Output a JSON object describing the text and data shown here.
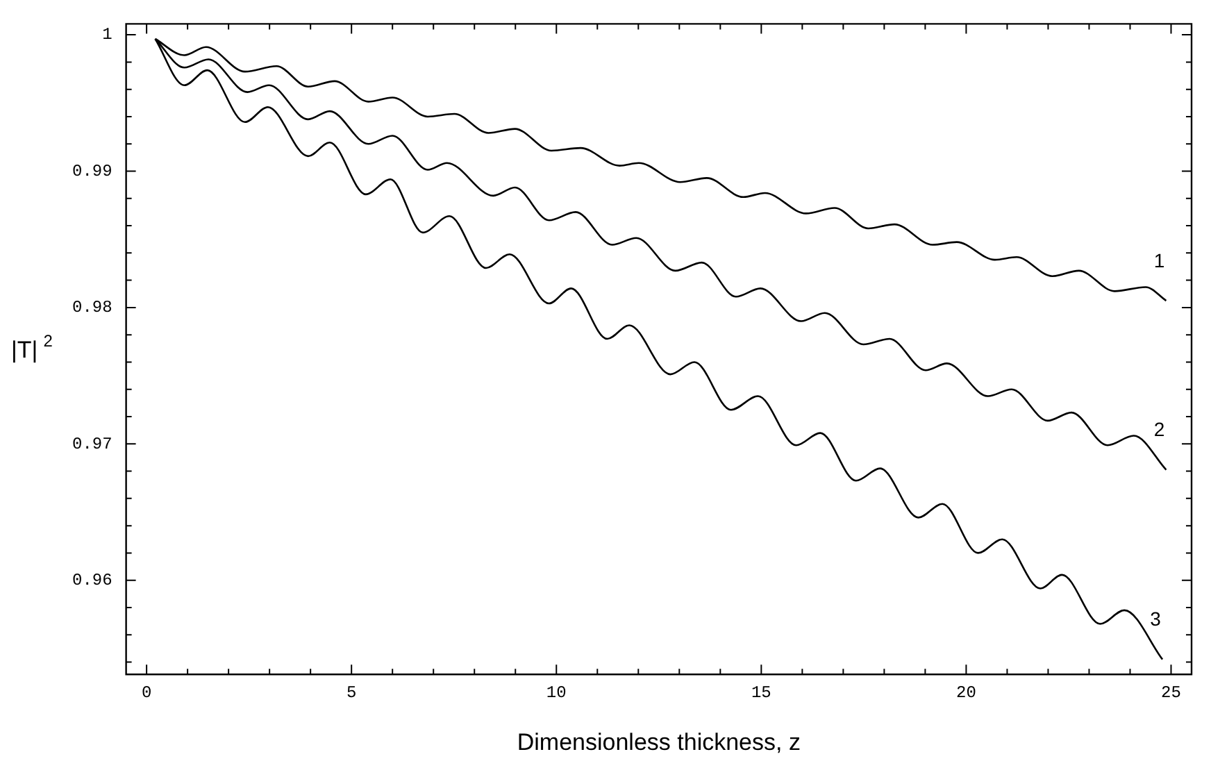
{
  "chart_data": {
    "type": "line",
    "xlabel": "Dimensionless thickness, z",
    "ylabel": "|T|$^{2}$",
    "xlim": [
      -0.5,
      25.5
    ],
    "ylim": [
      0.9531,
      1.0008
    ],
    "xticks": [
      0,
      {
        "value": 1,
        "label": null
      },
      {
        "value": 2,
        "label": null
      },
      {
        "value": 3,
        "label": null
      },
      {
        "value": 4,
        "label": null
      },
      5,
      {
        "value": 6,
        "label": null
      },
      {
        "value": 7,
        "label": null
      },
      {
        "value": 8,
        "label": null
      },
      {
        "value": 9,
        "label": null
      },
      10,
      {
        "value": 11,
        "label": null
      },
      {
        "value": 12,
        "label": null
      },
      {
        "value": 13,
        "label": null
      },
      {
        "value": 14,
        "label": null
      },
      15,
      {
        "value": 16,
        "label": null
      },
      {
        "value": 17,
        "label": null
      },
      {
        "value": 18,
        "label": null
      },
      {
        "value": 19,
        "label": null
      },
      20,
      {
        "value": 21,
        "label": null
      },
      {
        "value": 22,
        "label": null
      },
      {
        "value": 23,
        "label": null
      },
      {
        "value": 24,
        "label": null
      },
      25
    ],
    "yticks": [
      {
        "value": 0.954,
        "label": null
      },
      {
        "value": 0.956,
        "label": null
      },
      {
        "value": 0.958,
        "label": null
      },
      {
        "value": 0.96,
        "label": "0.96"
      },
      {
        "value": 0.962,
        "label": null
      },
      {
        "value": 0.964,
        "label": null
      },
      {
        "value": 0.966,
        "label": null
      },
      {
        "value": 0.968,
        "label": null
      },
      {
        "value": 0.97,
        "label": "0.97"
      },
      {
        "value": 0.972,
        "label": null
      },
      {
        "value": 0.974,
        "label": null
      },
      {
        "value": 0.976,
        "label": null
      },
      {
        "value": 0.978,
        "label": null
      },
      {
        "value": 0.98,
        "label": "0.98"
      },
      {
        "value": 0.982,
        "label": null
      },
      {
        "value": 0.984,
        "label": null
      },
      {
        "value": 0.986,
        "label": null
      },
      {
        "value": 0.988,
        "label": null
      },
      {
        "value": 0.99,
        "label": "0.99"
      },
      {
        "value": 0.992,
        "label": null
      },
      {
        "value": 0.994,
        "label": null
      },
      {
        "value": 0.996,
        "label": null
      },
      {
        "value": 0.998,
        "label": null
      },
      1
    ],
    "grid": false,
    "legend": "right",
    "marker": "none",
    "line_style": "solid",
    "series": [
      {
        "name": "1",
        "color": "#000000",
        "x": [
          0.21,
          0.92,
          1.45,
          2.4,
          3.17,
          3.94,
          4.59,
          5.41,
          6.0,
          6.86,
          7.51,
          8.34,
          8.99,
          9.88,
          10.59,
          11.54,
          12.01,
          13.02,
          13.67,
          14.56,
          15.09,
          16.09,
          16.79,
          17.61,
          18.25,
          19.18,
          19.77,
          20.7,
          21.23,
          22.1,
          22.75,
          23.62,
          24.38,
          24.88
        ],
        "values": [
          0.9997,
          0.9985,
          0.9991,
          0.9973,
          0.9977,
          0.9962,
          0.9966,
          0.9951,
          0.9954,
          0.994,
          0.9942,
          0.9928,
          0.9931,
          0.9915,
          0.9917,
          0.9904,
          0.9906,
          0.9892,
          0.9895,
          0.9881,
          0.9884,
          0.9869,
          0.9873,
          0.9858,
          0.9861,
          0.9846,
          0.9848,
          0.9835,
          0.9837,
          0.9823,
          0.9827,
          0.9812,
          0.9815,
          0.9805
        ]
      },
      {
        "name": "2",
        "color": "#000000",
        "x": [
          0.21,
          0.92,
          1.51,
          2.46,
          2.99,
          3.94,
          4.47,
          5.41,
          6.0,
          6.86,
          7.33,
          8.46,
          8.99,
          9.82,
          10.47,
          11.36,
          11.95,
          12.9,
          13.55,
          14.38,
          14.98,
          15.97,
          16.55,
          17.49,
          18.13,
          19.01,
          19.53,
          20.53,
          21.11,
          21.99,
          22.57,
          23.45,
          24.09,
          24.88
        ],
        "values": [
          0.9997,
          0.9976,
          0.9982,
          0.9958,
          0.9963,
          0.9938,
          0.9944,
          0.992,
          0.9926,
          0.9901,
          0.9906,
          0.9882,
          0.9888,
          0.9864,
          0.987,
          0.9846,
          0.9851,
          0.9827,
          0.9833,
          0.9808,
          0.9814,
          0.979,
          0.9796,
          0.9773,
          0.9777,
          0.9754,
          0.9759,
          0.9735,
          0.974,
          0.9717,
          0.9723,
          0.9699,
          0.9706,
          0.9681
        ]
      },
      {
        "name": "3",
        "color": "#000000",
        "x": [
          0.21,
          0.92,
          1.48,
          2.4,
          2.96,
          3.94,
          4.47,
          5.35,
          5.95,
          6.74,
          7.39,
          8.28,
          8.86,
          9.82,
          10.36,
          11.24,
          11.78,
          12.78,
          13.37,
          14.26,
          14.92,
          15.85,
          16.44,
          17.31,
          17.9,
          18.83,
          19.42,
          20.29,
          20.88,
          21.81,
          22.34,
          23.27,
          23.86,
          24.79
        ],
        "values": [
          0.9997,
          0.9963,
          0.9974,
          0.9936,
          0.9947,
          0.9911,
          0.9921,
          0.9883,
          0.9894,
          0.9855,
          0.9867,
          0.9829,
          0.9839,
          0.9803,
          0.9814,
          0.9777,
          0.9787,
          0.9751,
          0.976,
          0.9725,
          0.9735,
          0.9699,
          0.9708,
          0.9673,
          0.9682,
          0.9646,
          0.9656,
          0.962,
          0.963,
          0.9594,
          0.9604,
          0.9568,
          0.9578,
          0.9542
        ]
      }
    ]
  }
}
